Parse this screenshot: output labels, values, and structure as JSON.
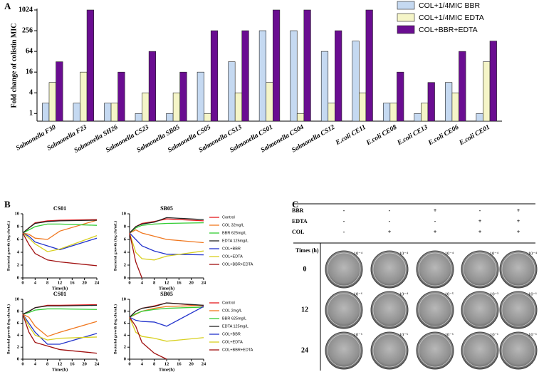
{
  "panel_labels": [
    "A",
    "B",
    "C"
  ],
  "chart_data": [
    {
      "type": "bar",
      "ylabel": "Fold change of colistin MIC",
      "log_scale": true,
      "ylim": [
        0.6,
        1024
      ],
      "yticks": [
        1,
        4,
        16,
        64,
        256,
        1024
      ],
      "legend": "top-right",
      "categories": [
        "Salmonella F30",
        "Salmonella F23",
        "Salmonella SH26",
        "Salmonella CS23",
        "Salmonella SB05",
        "Salmonella CS05",
        "Salmonella CS13",
        "Salmonella CS01",
        "Salmonella CS04",
        "Salmonella CS12",
        "E.coli CE11",
        "E.coli CE08",
        "E.coli CE13",
        "E.coli CE06",
        "E.coli CE01"
      ],
      "series": [
        {
          "name": "COL+1/4MIC BBR",
          "color": "#c5d9f1",
          "values": [
            2,
            2,
            2,
            1,
            1,
            16,
            32,
            256,
            256,
            64,
            128,
            2,
            1,
            8,
            1
          ]
        },
        {
          "name": "COL+1/4MIC EDTA",
          "color": "#f5f5c8",
          "values": [
            8,
            16,
            2,
            4,
            4,
            1,
            4,
            8,
            1,
            2,
            4,
            2,
            2,
            4,
            32
          ]
        },
        {
          "name": "COL+BBR+EDTA",
          "color": "#6a0d91",
          "values": [
            32,
            1024,
            16,
            64,
            16,
            256,
            256,
            1024,
            1024,
            256,
            1024,
            16,
            8,
            64,
            128
          ]
        }
      ]
    },
    {
      "type": "line",
      "title": "CS01",
      "xlabel": "Time(h)",
      "ylabel": "Bacterial growth (log cfu/mL)",
      "x": [
        0,
        2,
        4,
        8,
        12,
        24
      ],
      "xlim": [
        0,
        24
      ],
      "xticks": [
        0,
        4,
        8,
        12,
        16,
        20,
        24
      ],
      "ylim": [
        0,
        10
      ],
      "yticks": [
        0,
        2,
        4,
        6,
        8,
        10
      ],
      "series": [
        {
          "color": "#e41a1c",
          "values": [
            7.0,
            7.8,
            8.6,
            8.9,
            9.0,
            9.1
          ]
        },
        {
          "color": "#f07820",
          "values": [
            7.0,
            6.8,
            6.2,
            6.0,
            7.3,
            9.0
          ]
        },
        {
          "color": "#33cc33",
          "values": [
            7.0,
            7.5,
            8.0,
            8.4,
            8.4,
            8.2
          ]
        },
        {
          "color": "#222222",
          "values": [
            7.0,
            7.8,
            8.5,
            8.8,
            8.9,
            9.0
          ]
        },
        {
          "color": "#2233cc",
          "values": [
            7.0,
            6.5,
            5.6,
            5.0,
            4.4,
            6.2
          ]
        },
        {
          "color": "#d8d020",
          "values": [
            7.0,
            6.2,
            5.3,
            4.1,
            4.5,
            6.6
          ]
        },
        {
          "color": "#a01010",
          "values": [
            7.0,
            5.2,
            3.8,
            2.8,
            2.5,
            1.9
          ]
        }
      ]
    },
    {
      "type": "line",
      "title": "SB05",
      "xlabel": "Time(h)",
      "ylabel": "Bacterial growth (log cfu/mL)",
      "x": [
        0,
        2,
        4,
        8,
        12,
        24
      ],
      "xlim": [
        0,
        24
      ],
      "xticks": [
        0,
        4,
        8,
        12,
        16,
        20,
        24
      ],
      "ylim": [
        0,
        10
      ],
      "yticks": [
        0,
        2,
        4,
        6,
        8,
        10
      ],
      "legend": "right",
      "series": [
        {
          "name": "Control",
          "color": "#e41a1c",
          "values": [
            7.0,
            8.0,
            8.5,
            8.8,
            9.2,
            8.9
          ]
        },
        {
          "name": "COL 32mg/L",
          "color": "#f07820",
          "values": [
            7.0,
            7.5,
            7.0,
            6.5,
            6.0,
            5.5
          ]
        },
        {
          "name": "BBR 625mg/L",
          "color": "#33cc33",
          "values": [
            7.0,
            7.8,
            8.2,
            8.4,
            8.5,
            8.6
          ]
        },
        {
          "name": "EDTA 125mg/L",
          "color": "#222222",
          "values": [
            7.0,
            8.0,
            8.4,
            8.7,
            9.4,
            9.1
          ]
        },
        {
          "name": "COL+BBR",
          "color": "#2233cc",
          "values": [
            7.0,
            6.0,
            5.0,
            4.2,
            3.7,
            3.6
          ]
        },
        {
          "name": "COL+EDTA",
          "color": "#d8d020",
          "values": [
            7.0,
            4.0,
            3.0,
            2.8,
            3.4,
            4.2
          ]
        },
        {
          "name": "COL+BBR+EDTA",
          "color": "#a01010",
          "values": [
            7.0,
            2.5,
            0,
            null,
            null,
            null
          ]
        }
      ]
    },
    {
      "type": "line",
      "title": "CS01",
      "xlabel": "Time(h)",
      "ylabel": "Bacterial growth (log cfu/mL)",
      "x": [
        0,
        2,
        4,
        8,
        12,
        24
      ],
      "xlim": [
        0,
        24
      ],
      "xticks": [
        0,
        4,
        8,
        12,
        16,
        20,
        24
      ],
      "ylim": [
        0,
        10
      ],
      "yticks": [
        0,
        2,
        4,
        6,
        8,
        10
      ],
      "series": [
        {
          "color": "#e41a1c",
          "values": [
            7.5,
            8.0,
            8.6,
            9.0,
            9.0,
            9.1
          ]
        },
        {
          "color": "#f07820",
          "values": [
            7.5,
            7.0,
            5.5,
            3.8,
            4.5,
            6.3
          ]
        },
        {
          "color": "#33cc33",
          "values": [
            7.5,
            7.8,
            8.2,
            8.4,
            8.4,
            8.3
          ]
        },
        {
          "color": "#222222",
          "values": [
            7.5,
            8.0,
            8.6,
            8.9,
            8.9,
            9.0
          ]
        },
        {
          "color": "#2233cc",
          "values": [
            7.5,
            6.0,
            4.5,
            2.5,
            2.5,
            4.3
          ]
        },
        {
          "color": "#d8d020",
          "values": [
            7.5,
            5.5,
            4.0,
            3.2,
            3.5,
            3.7
          ]
        },
        {
          "color": "#a01010",
          "values": [
            7.5,
            4.5,
            2.8,
            2.2,
            1.6,
            1.0
          ]
        }
      ]
    },
    {
      "type": "line",
      "title": "SB05",
      "xlabel": "Time(h)",
      "ylabel": "Bacterial growth (log cfu/mL)",
      "x": [
        0,
        2,
        4,
        8,
        12,
        24
      ],
      "xlim": [
        0,
        24
      ],
      "xticks": [
        0,
        4,
        8,
        12,
        16,
        20,
        24
      ],
      "ylim": [
        0,
        10
      ],
      "yticks": [
        0,
        2,
        4,
        6,
        8,
        10
      ],
      "legend": "right",
      "series": [
        {
          "name": "Control",
          "color": "#e41a1c",
          "values": [
            7.0,
            8.0,
            8.5,
            8.9,
            9.4,
            8.9
          ]
        },
        {
          "name": "COL 2mg/L",
          "color": "#f07820",
          "values": [
            7.0,
            7.5,
            8.0,
            8.5,
            8.8,
            9.0
          ]
        },
        {
          "name": "BBR 625mg/L",
          "color": "#33cc33",
          "values": [
            7.0,
            7.6,
            8.0,
            8.3,
            8.5,
            8.7
          ]
        },
        {
          "name": "EDTA 125mg/L",
          "color": "#222222",
          "values": [
            7.0,
            8.0,
            8.5,
            8.8,
            9.4,
            9.0
          ]
        },
        {
          "name": "COL+BBR",
          "color": "#2233cc",
          "values": [
            7.0,
            6.5,
            6.3,
            6.2,
            5.5,
            8.8
          ]
        },
        {
          "name": "COL+EDTA",
          "color": "#d8d020",
          "values": [
            7.0,
            4.5,
            3.8,
            3.5,
            3.0,
            3.6
          ]
        },
        {
          "name": "COL+BBR+EDTA",
          "color": "#a01010",
          "values": [
            7.0,
            5.5,
            2.8,
            1.0,
            0,
            null
          ]
        }
      ]
    }
  ],
  "plate_table": {
    "treatments": [
      {
        "name": "BBR",
        "values": [
          "-",
          "-",
          "+",
          "-",
          "+"
        ]
      },
      {
        "name": "EDTA",
        "values": [
          "-",
          "-",
          "-",
          "+",
          "+"
        ]
      },
      {
        "name": "COL",
        "values": [
          "-",
          "+",
          "+",
          "+",
          "+"
        ]
      }
    ],
    "times_header": "Times (h)",
    "rows": [
      {
        "time": "0",
        "dilutions": [
          "10⁻⁴",
          "10⁻⁴",
          "10⁻⁴",
          "10⁻⁴",
          "10⁻⁴"
        ]
      },
      {
        "time": "12",
        "dilutions": [
          "10⁻⁶",
          "10⁻⁴",
          "10⁻⁵",
          "10⁻³",
          "10⁻¹"
        ]
      },
      {
        "time": "24",
        "dilutions": [
          "10⁻⁶",
          "10⁻⁵",
          "10⁻⁶",
          "10⁻¹",
          "10⁻¹"
        ]
      }
    ]
  }
}
